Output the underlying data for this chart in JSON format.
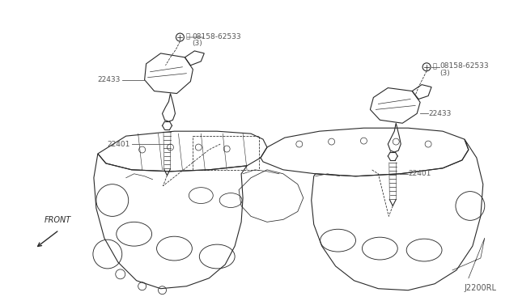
{
  "bg_color": "#ffffff",
  "fig_width": 6.4,
  "fig_height": 3.72,
  "dpi": 100,
  "diagram_code": "J2200RL",
  "label_color": "#555555",
  "line_color": "#2a2a2a",
  "label_fs": 6.5
}
